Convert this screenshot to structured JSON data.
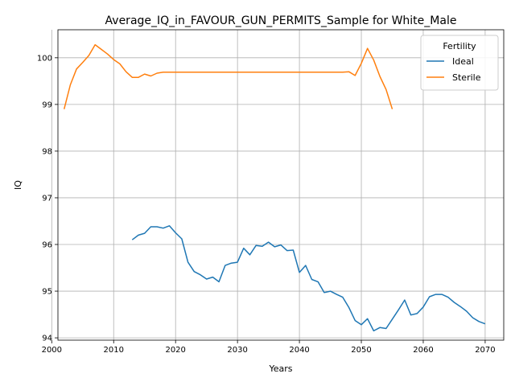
{
  "chart_data": {
    "type": "line",
    "title": "Average_IQ_in_FAVOUR_GUN_PERMITS_Sample for White_Male",
    "xlabel": "Years",
    "ylabel": "IQ",
    "xlim": [
      2001,
      2073
    ],
    "ylim": [
      93.95,
      100.6
    ],
    "xticks": [
      2000,
      2010,
      2020,
      2030,
      2040,
      2050,
      2060,
      2070
    ],
    "yticks": [
      94,
      95,
      96,
      97,
      98,
      99,
      100
    ],
    "grid": true,
    "legend": {
      "title": "Fertility",
      "placement": "top-right"
    },
    "series": [
      {
        "name": "Ideal",
        "color": "#1f77b4",
        "x": [
          2013,
          2014,
          2015,
          2016,
          2017,
          2018,
          2019,
          2020,
          2021,
          2022,
          2023,
          2024,
          2025,
          2026,
          2027,
          2028,
          2029,
          2030,
          2031,
          2032,
          2033,
          2034,
          2035,
          2036,
          2037,
          2038,
          2039,
          2040,
          2041,
          2042,
          2043,
          2044,
          2045,
          2046,
          2047,
          2048,
          2049,
          2050,
          2051,
          2052,
          2053,
          2054,
          2055,
          2056,
          2057,
          2058,
          2059,
          2060,
          2061,
          2062,
          2063,
          2064,
          2065,
          2066,
          2067,
          2068,
          2069,
          2070
        ],
        "y": [
          96.1,
          96.2,
          96.24,
          96.38,
          96.38,
          96.35,
          96.4,
          96.25,
          96.12,
          95.62,
          95.42,
          95.35,
          95.26,
          95.3,
          95.2,
          95.55,
          95.6,
          95.62,
          95.92,
          95.78,
          95.98,
          95.96,
          96.05,
          95.95,
          95.99,
          95.87,
          95.88,
          95.4,
          95.55,
          95.25,
          95.2,
          94.97,
          95.0,
          94.93,
          94.87,
          94.65,
          94.37,
          94.28,
          94.41,
          94.15,
          94.22,
          94.2,
          94.4,
          94.6,
          94.81,
          94.49,
          94.52,
          94.66,
          94.88,
          94.93,
          94.93,
          94.87,
          94.76,
          94.67,
          94.57,
          94.43,
          94.35,
          94.3
        ]
      },
      {
        "name": "Sterile",
        "color": "#ff7f0e",
        "x": [
          2002,
          2003,
          2004,
          2005,
          2006,
          2007,
          2008,
          2009,
          2010,
          2011,
          2012,
          2013,
          2014,
          2015,
          2016,
          2017,
          2018,
          2019,
          2020,
          2021,
          2022,
          2023,
          2024,
          2025,
          2026,
          2027,
          2028,
          2029,
          2030,
          2031,
          2032,
          2033,
          2034,
          2035,
          2036,
          2037,
          2038,
          2039,
          2040,
          2041,
          2042,
          2043,
          2044,
          2045,
          2046,
          2047,
          2048,
          2049,
          2050,
          2051,
          2052,
          2053,
          2054,
          2055
        ],
        "y": [
          98.9,
          99.42,
          99.76,
          99.9,
          100.05,
          100.28,
          100.18,
          100.08,
          99.96,
          99.87,
          99.7,
          99.58,
          99.58,
          99.65,
          99.61,
          99.67,
          99.69,
          99.69,
          99.69,
          99.69,
          99.69,
          99.69,
          99.69,
          99.69,
          99.69,
          99.69,
          99.69,
          99.69,
          99.69,
          99.69,
          99.69,
          99.69,
          99.69,
          99.69,
          99.69,
          99.69,
          99.69,
          99.69,
          99.69,
          99.69,
          99.69,
          99.69,
          99.69,
          99.69,
          99.69,
          99.69,
          99.7,
          99.62,
          99.88,
          100.2,
          99.95,
          99.6,
          99.32,
          98.9
        ]
      }
    ]
  }
}
